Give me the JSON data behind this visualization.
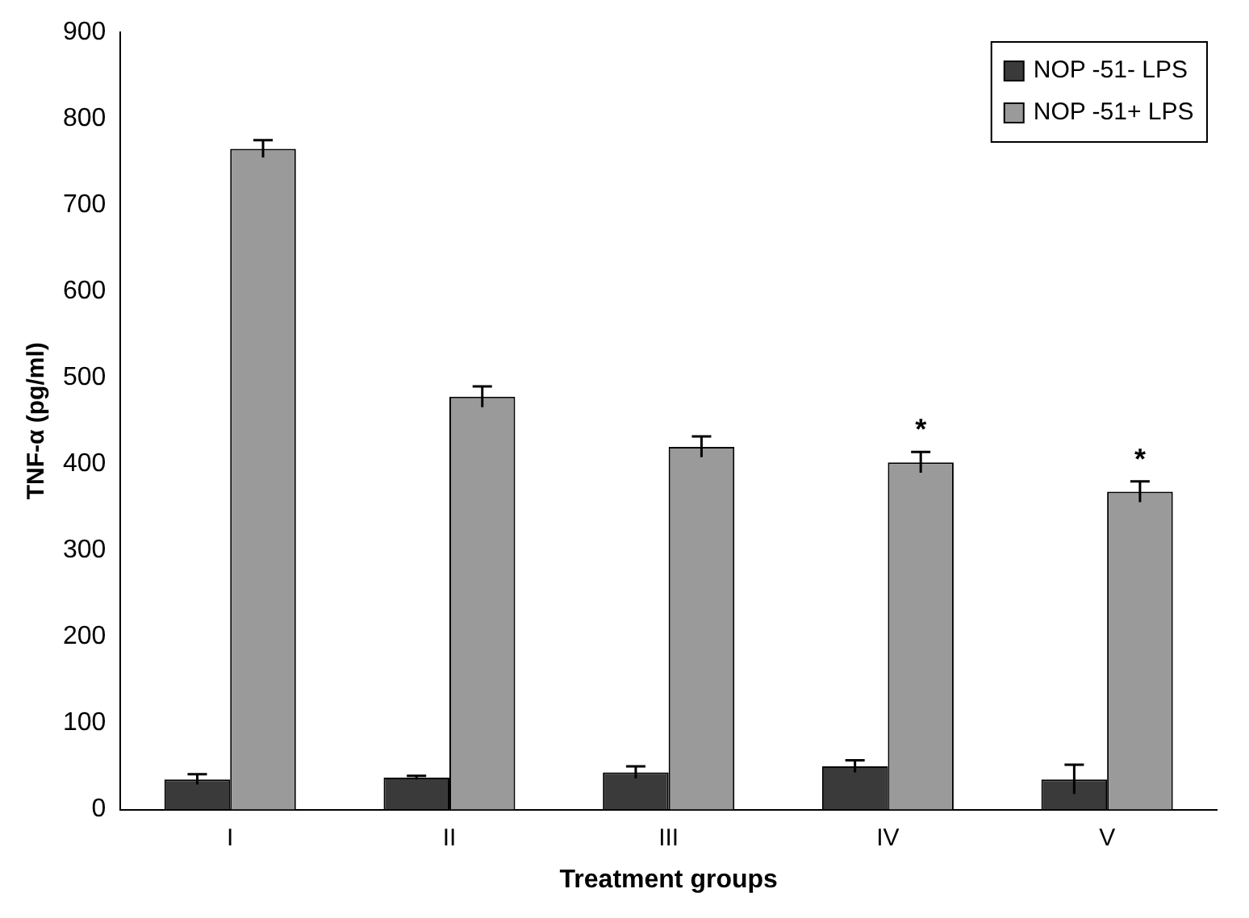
{
  "chart_data": {
    "type": "bar",
    "xlabel": "Treatment groups",
    "ylabel": "TNF-α (pg/ml)",
    "categories": [
      "I",
      "II",
      "III",
      "IV",
      "V"
    ],
    "series": [
      {
        "name": "NOP -51- LPS",
        "color": "#3a3a3a",
        "values": [
          35,
          37,
          43,
          50,
          35
        ],
        "errors": [
          6,
          2,
          7,
          7,
          17
        ]
      },
      {
        "name": "NOP -51+ LPS",
        "color": "#9a9a9a",
        "values": [
          765,
          478,
          420,
          402,
          368
        ],
        "errors": [
          10,
          12,
          12,
          12,
          12
        ]
      }
    ],
    "ylim": [
      0,
      900
    ],
    "yticks": [
      0,
      100,
      200,
      300,
      400,
      500,
      600,
      700,
      800,
      900
    ],
    "annotations": [
      {
        "text": "*",
        "x": "IV",
        "y": 402
      },
      {
        "text": "*",
        "x": "V",
        "y": 368
      }
    ],
    "legend": "top right",
    "grid": false
  }
}
